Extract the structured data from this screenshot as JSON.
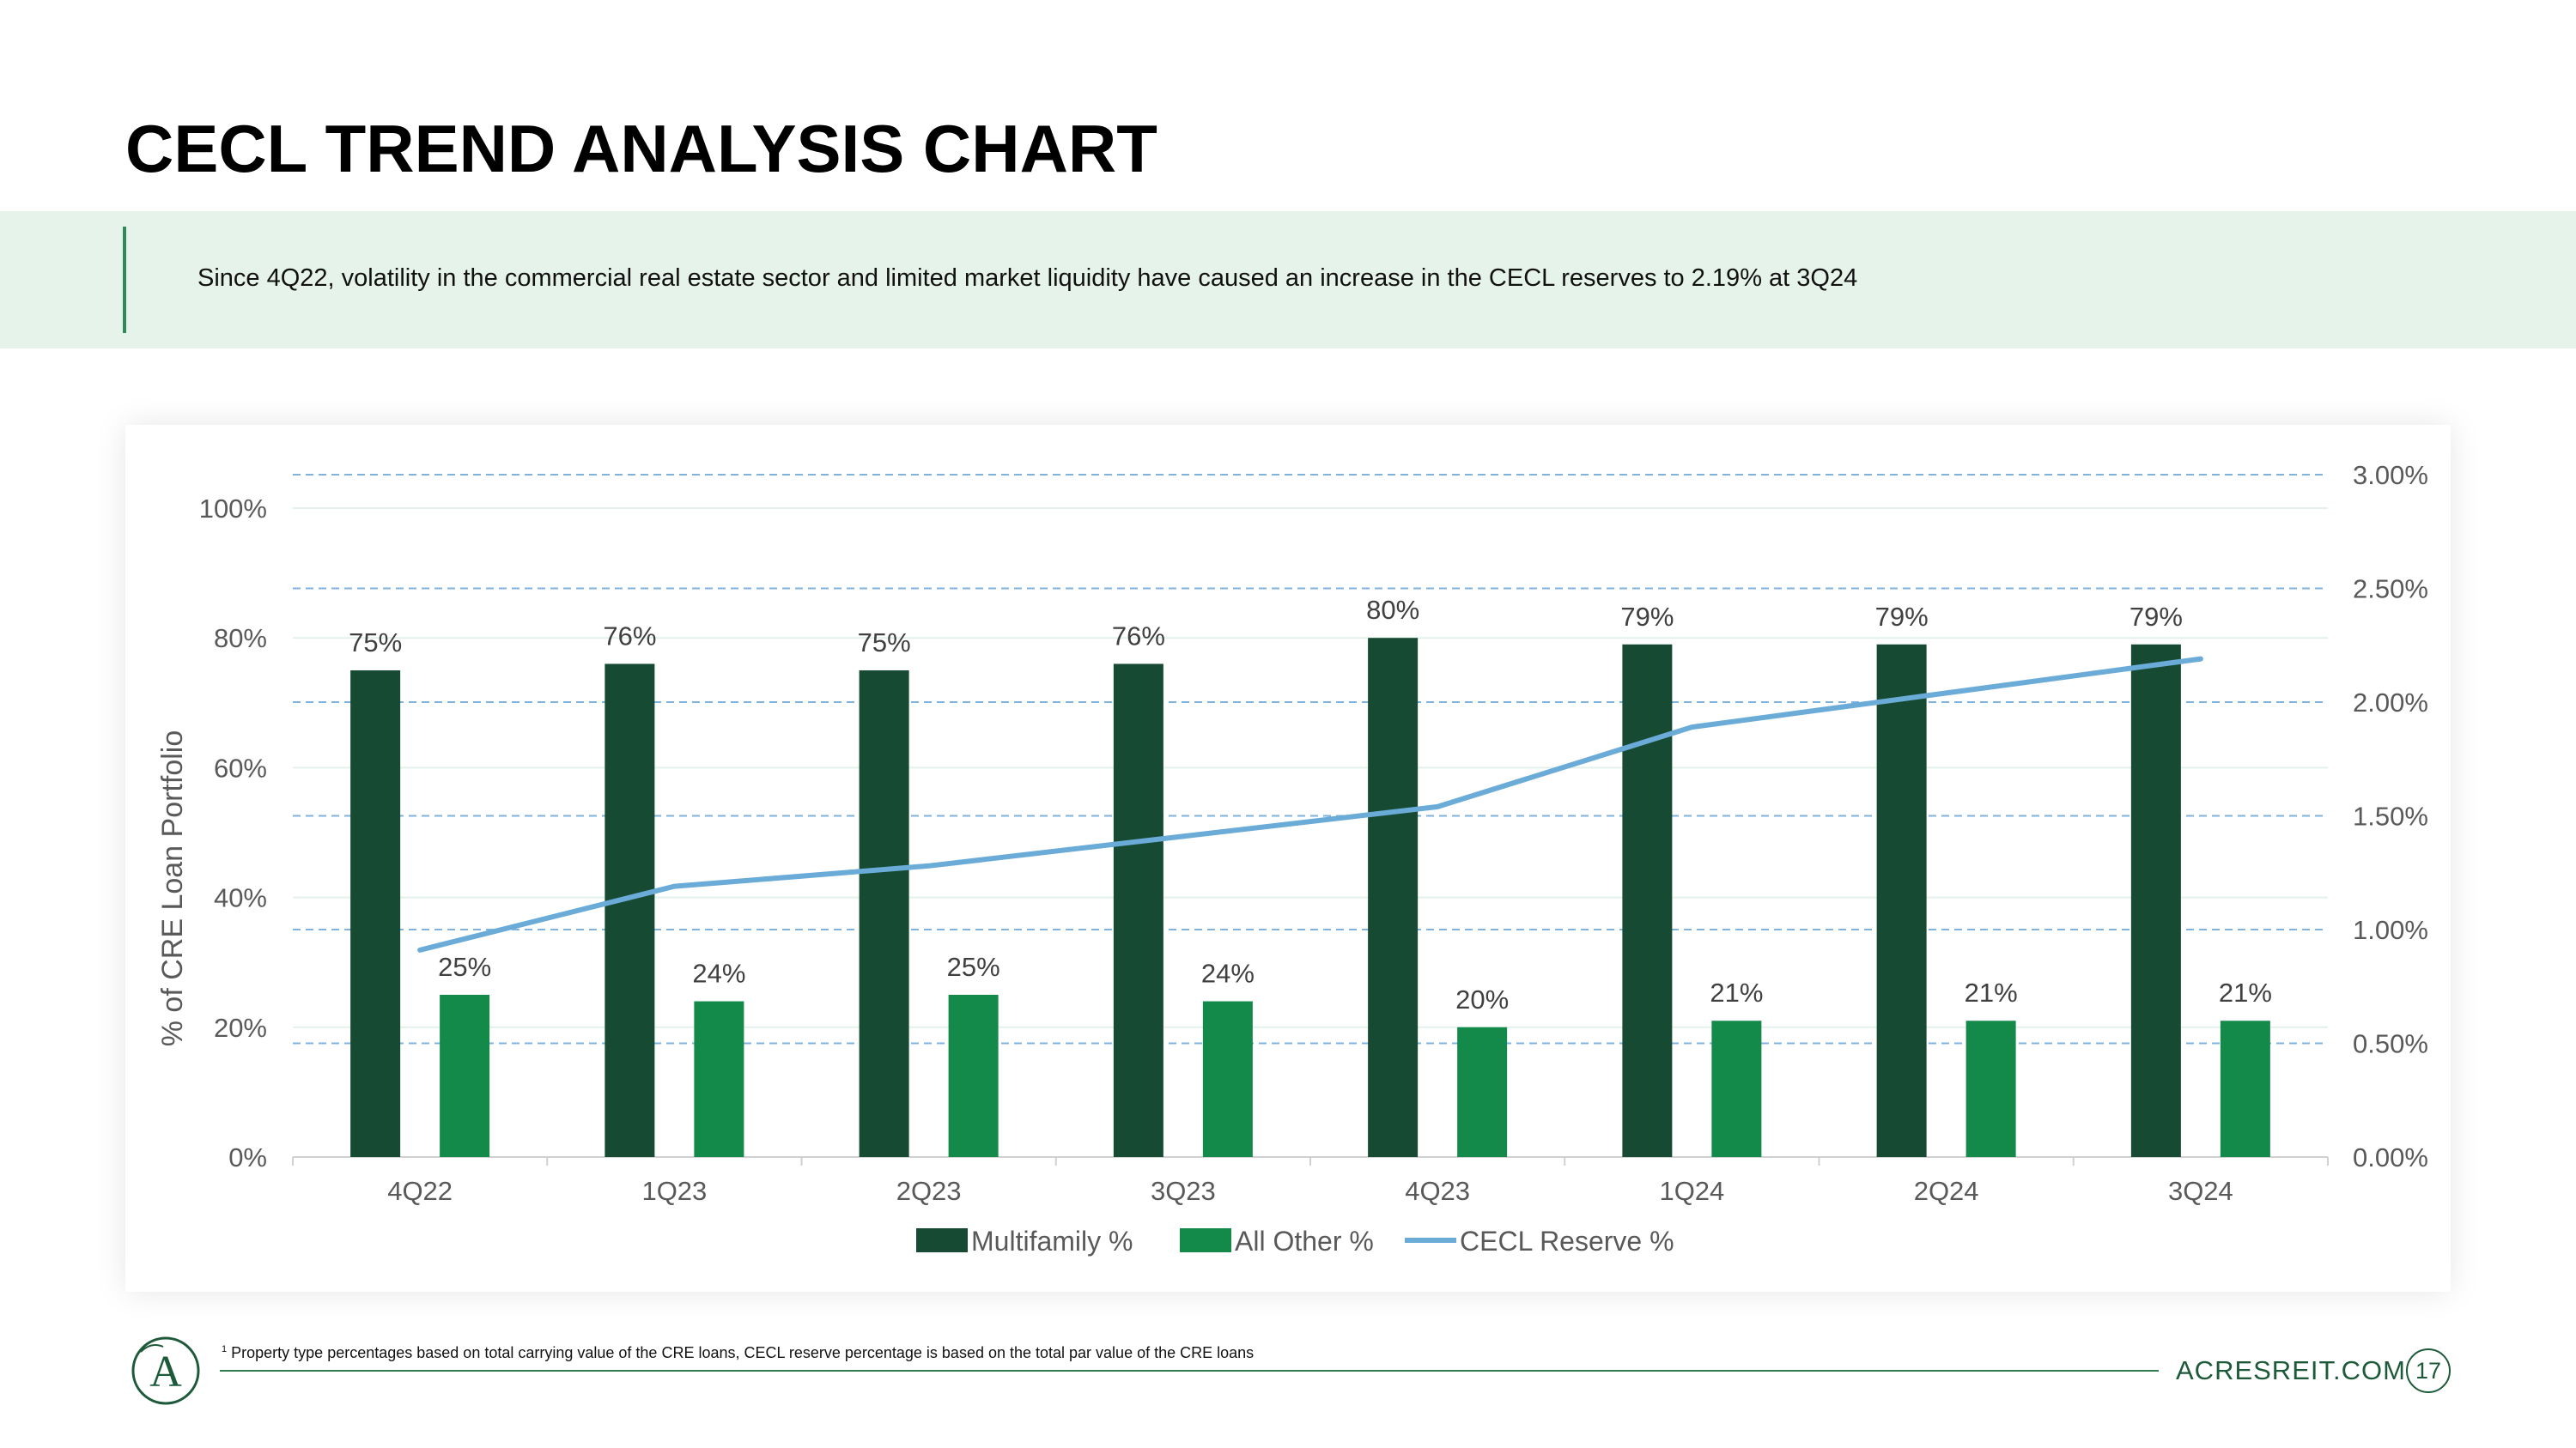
{
  "page": {
    "title": "CECL TREND ANALYSIS CHART",
    "callout": "Since 4Q22, volatility in the commercial real estate sector and limited market liquidity have caused an increase in the CECL reserves to 2.19% at 3Q24",
    "footnote_marker": "1",
    "footnote": "Property type percentages based on total carrying value of the CRE loans, CECL reserve percentage is based on the total par value of the CRE loans",
    "website": "ACRESREIT.COM",
    "page_number": "17",
    "logo_letter": "A"
  },
  "colors": {
    "multifamily": "#174a33",
    "all_other": "#138a4a",
    "cecl": "#6aabd8",
    "axis_text": "#595959",
    "brand": "#1d5a3a"
  },
  "chart_data": {
    "type": "bar",
    "categories": [
      "4Q22",
      "1Q23",
      "2Q23",
      "3Q23",
      "4Q23",
      "1Q24",
      "2Q24",
      "3Q24"
    ],
    "series": [
      {
        "name": "Multifamily %",
        "type": "bar",
        "axis": "left",
        "values": [
          75,
          76,
          75,
          76,
          80,
          79,
          79,
          79
        ],
        "labels": [
          "75%",
          "76%",
          "75%",
          "76%",
          "80%",
          "79%",
          "79%",
          "79%"
        ]
      },
      {
        "name": "All Other %",
        "type": "bar",
        "axis": "left",
        "values": [
          25,
          24,
          25,
          24,
          20,
          21,
          21,
          21
        ],
        "labels": [
          "25%",
          "24%",
          "25%",
          "24%",
          "20%",
          "21%",
          "21%",
          "21%"
        ]
      },
      {
        "name": "CECL Reserve %",
        "type": "line",
        "axis": "right",
        "values": [
          0.91,
          1.19,
          1.28,
          1.41,
          1.54,
          1.89,
          2.04,
          2.19
        ]
      }
    ],
    "ylabel": "% of CRE Loan Portfolio",
    "y_left": {
      "range": [
        0,
        100
      ],
      "ticks": [
        0,
        20,
        40,
        60,
        80,
        100
      ],
      "tick_labels": [
        "0%",
        "20%",
        "40%",
        "60%",
        "80%",
        "100%"
      ]
    },
    "y_right": {
      "range": [
        0,
        3.0
      ],
      "ticks": [
        0,
        0.5,
        1.0,
        1.5,
        2.0,
        2.5,
        3.0
      ],
      "tick_labels": [
        "0.00%",
        "0.50%",
        "1.00%",
        "1.50%",
        "2.00%",
        "2.50%",
        "3.00%"
      ]
    },
    "legend_position": "bottom"
  }
}
